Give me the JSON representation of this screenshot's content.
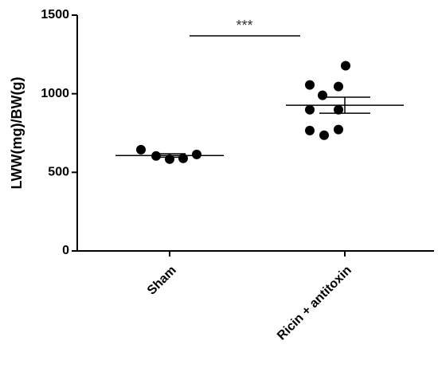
{
  "chart_data": {
    "type": "dotplot",
    "y_label": "LWW(mg)/BW(g)",
    "categories": [
      "Sham",
      "Ricin + antitoxin"
    ],
    "groups": [
      {
        "values": [
          644,
          604,
          584,
          589,
          614
        ],
        "mean": 607,
        "sem": 11
      },
      {
        "values": [
          1178,
          1056,
          1046,
          990,
          898,
          898,
          766,
          736,
          772
        ],
        "mean": 927,
        "sem": 51
      }
    ],
    "color": "#000000",
    "annotation": "***",
    "ylim": [
      0,
      1500
    ],
    "yticks": [
      0,
      500,
      1000,
      1500
    ]
  }
}
